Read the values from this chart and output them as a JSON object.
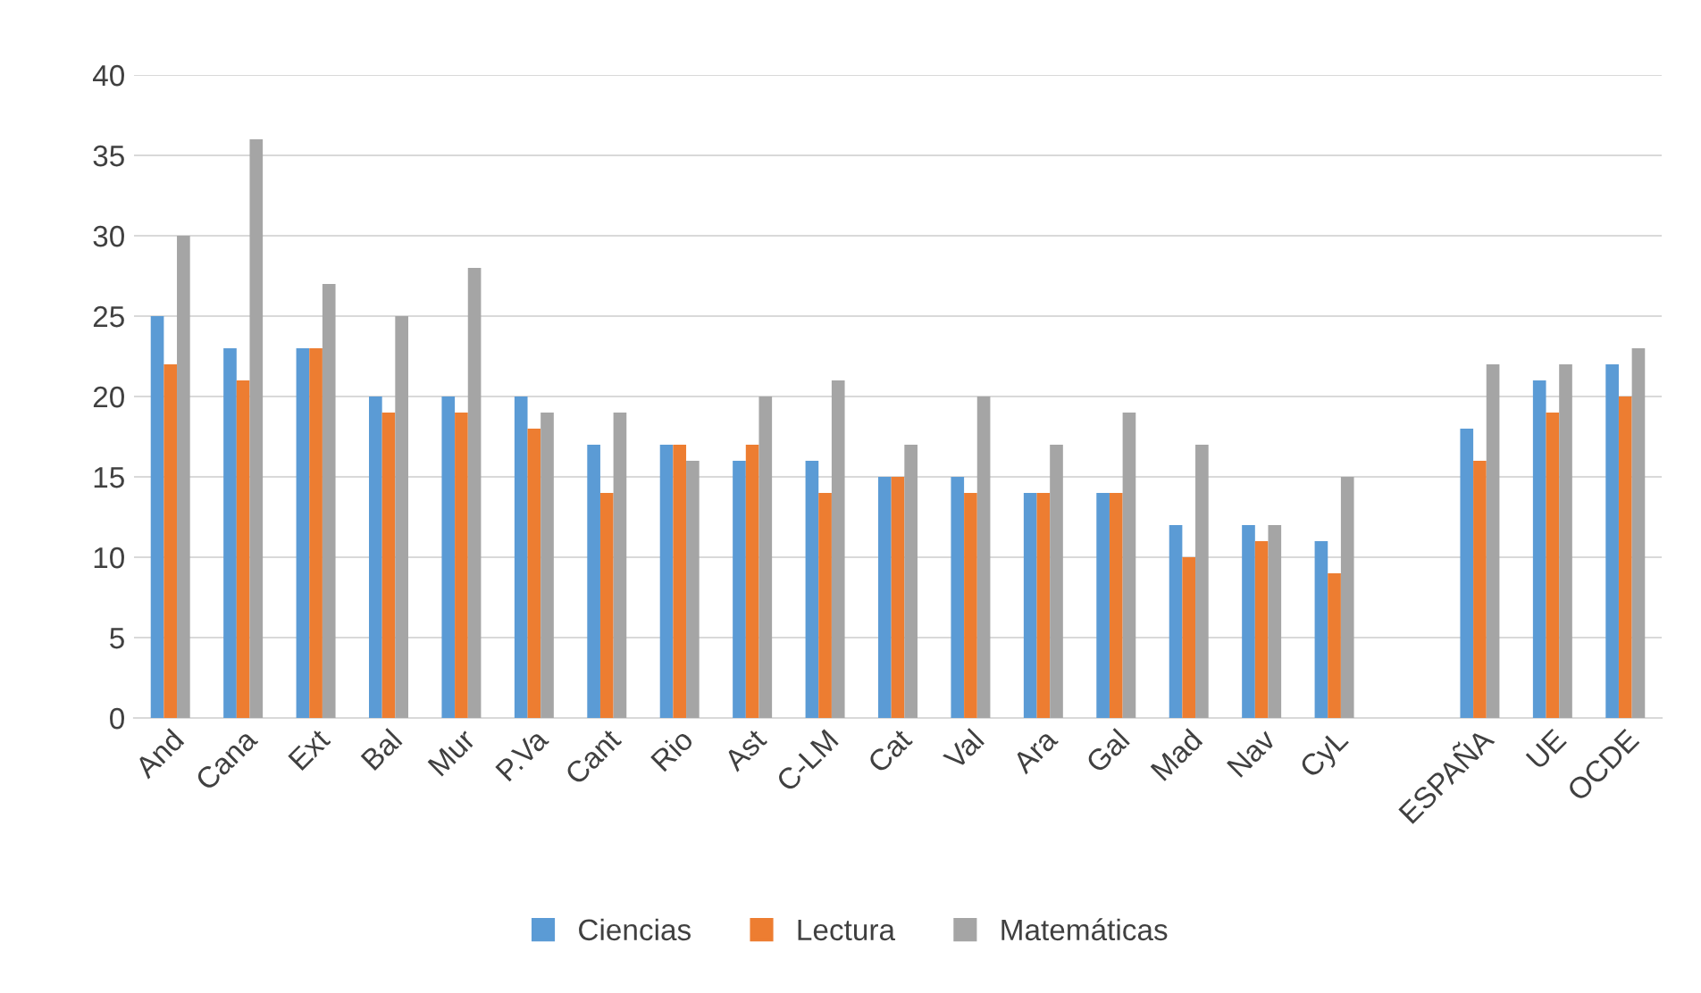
{
  "chart_data": {
    "type": "bar",
    "categories": [
      "And",
      "Cana",
      "Ext",
      "Bal",
      "Mur",
      "P.Va",
      "Cant",
      "Rio",
      "Ast",
      "C-LM",
      "Cat",
      "Val",
      "Ara",
      "Gal",
      "Mad",
      "Nav",
      "CyL",
      null,
      "ESPAÑA",
      "UE",
      "OCDE"
    ],
    "series": [
      {
        "name": "Ciencias",
        "color": "#5b9bd5",
        "values": [
          25,
          23,
          23,
          20,
          20,
          20,
          17,
          17,
          16,
          16,
          15,
          15,
          14,
          14,
          12,
          12,
          11,
          null,
          18,
          21,
          22
        ]
      },
      {
        "name": "Lectura",
        "color": "#ed7d31",
        "values": [
          22,
          21,
          23,
          19,
          19,
          18,
          14,
          17,
          17,
          14,
          15,
          14,
          14,
          14,
          10,
          11,
          9,
          null,
          16,
          19,
          20
        ]
      },
      {
        "name": "Matemáticas",
        "color": "#a5a5a5",
        "values": [
          30,
          36,
          27,
          25,
          28,
          19,
          19,
          16,
          20,
          21,
          17,
          20,
          17,
          19,
          17,
          12,
          15,
          null,
          22,
          22,
          23
        ]
      }
    ],
    "ylim": [
      0,
      40
    ],
    "yticks": [
      0,
      5,
      10,
      15,
      20,
      25,
      30,
      35,
      40
    ],
    "grid": "y",
    "legend": "bottom"
  }
}
